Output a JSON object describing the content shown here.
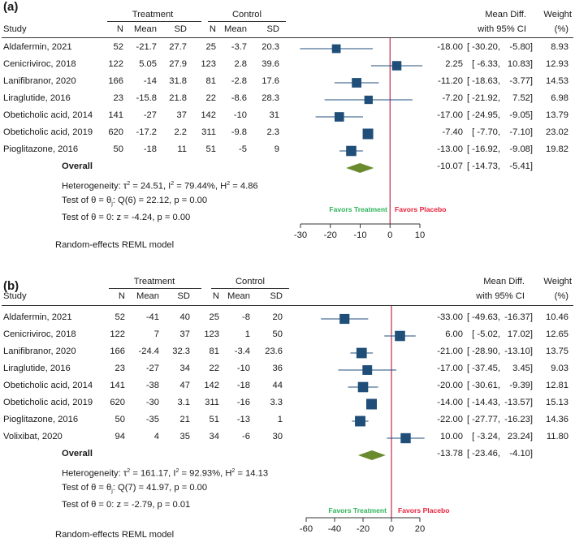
{
  "chart_data": [
    {
      "type": "forest",
      "panel_label": "(a)",
      "group_headers": {
        "treatment": "Treatment",
        "control": "Control"
      },
      "columns": [
        "Study",
        "N",
        "Mean",
        "SD",
        "N",
        "Mean",
        "SD"
      ],
      "effect_header_1": "Mean Diff.",
      "effect_header_2": "with 95% CI",
      "weight_header_1": "Weight",
      "weight_header_2": "(%)",
      "studies": [
        {
          "name": "Aldafermin, 2021",
          "t_n": "52",
          "t_mean": "-21.7",
          "t_sd": "27.7",
          "c_n": "25",
          "c_mean": "-3.7",
          "c_sd": "20.3",
          "md": -18.0,
          "lo": -30.2,
          "hi": -5.8,
          "md_text": "-18.00",
          "lo_text": "[ -30.20,",
          "hi_text": "-5.80]",
          "weight": "8.93"
        },
        {
          "name": "Cenicriviroc, 2018",
          "t_n": "122",
          "t_mean": "5.05",
          "t_sd": "27.9",
          "c_n": "123",
          "c_mean": "2.8",
          "c_sd": "39.6",
          "md": 2.25,
          "lo": -6.33,
          "hi": 10.83,
          "md_text": "2.25",
          "lo_text": "[ -6.33,",
          "hi_text": "10.83]",
          "weight": "12.93"
        },
        {
          "name": "Lanifibranor, 2020",
          "t_n": "166",
          "t_mean": "-14",
          "t_sd": "31.8",
          "c_n": "81",
          "c_mean": "-2.8",
          "c_sd": "17.6",
          "md": -11.2,
          "lo": -18.63,
          "hi": -3.77,
          "md_text": "-11.20",
          "lo_text": "[ -18.63,",
          "hi_text": "-3.77]",
          "weight": "14.53"
        },
        {
          "name": "Liraglutide, 2016",
          "t_n": "23",
          "t_mean": "-15.8",
          "t_sd": "21.8",
          "c_n": "22",
          "c_mean": "-8.6",
          "c_sd": "28.3",
          "md": -7.2,
          "lo": -21.92,
          "hi": 7.52,
          "md_text": "-7.20",
          "lo_text": "[ -21.92,",
          "hi_text": "7.52]",
          "weight": "6.98"
        },
        {
          "name": "Obeticholic acid, 2014",
          "t_n": "141",
          "t_mean": "-27",
          "t_sd": "37",
          "c_n": "142",
          "c_mean": "-10",
          "c_sd": "31",
          "md": -17.0,
          "lo": -24.95,
          "hi": -9.05,
          "md_text": "-17.00",
          "lo_text": "[ -24.95,",
          "hi_text": "-9.05]",
          "weight": "13.79"
        },
        {
          "name": "Obeticholic acid, 2019",
          "t_n": "620",
          "t_mean": "-17.2",
          "t_sd": "2.2",
          "c_n": "311",
          "c_mean": "-9.8",
          "c_sd": "2.3",
          "md": -7.4,
          "lo": -7.7,
          "hi": -7.1,
          "md_text": "-7.40",
          "lo_text": "[ -7.70,",
          "hi_text": "-7.10]",
          "weight": "23.02"
        },
        {
          "name": "Pioglitazone, 2016",
          "t_n": "50",
          "t_mean": "-18",
          "t_sd": "11",
          "c_n": "51",
          "c_mean": "-5",
          "c_sd": "9",
          "md": -13.0,
          "lo": -16.92,
          "hi": -9.08,
          "md_text": "-13.00",
          "lo_text": "[ -16.92,",
          "hi_text": "-9.08]",
          "weight": "19.82"
        }
      ],
      "overall": {
        "label": "Overall",
        "md": -10.07,
        "lo": -14.73,
        "hi": -5.41,
        "md_text": "-10.07",
        "lo_text": "[ -14.73,",
        "hi_text": "-5.41]"
      },
      "heterogeneity": {
        "prefix": "Heterogeneity: ",
        "tau_sym": "τ",
        "tau2": "= 24.51, ",
        "i_sym": "I",
        "i2": "= 79.44%, ",
        "h_sym": "H",
        "h2": "= 4.86"
      },
      "test_theta": "Test of θ = θ",
      "test_theta_sub": "j",
      "test_theta_rest": ": Q(6) = 22.12, p = 0.00",
      "test_zero": "Test of θ = 0: z = -4.24, p = 0.00",
      "favors_left": "Favors Treatment",
      "favors_right": "Favors Placebo",
      "xlim": [
        -30,
        10
      ],
      "xticks": [
        -30,
        -20,
        -10,
        0,
        10
      ],
      "xtick_labels": [
        "-30",
        "-20",
        "-10",
        "0",
        "10"
      ],
      "reference_line": 0,
      "model_note": "Random-effects REML model",
      "colors": {
        "square": "#1f4e79",
        "diamond": "#6a8a2e",
        "refline": "#c0284d",
        "favor_left": "#2fb35a",
        "favor_right": "#e8203a"
      }
    },
    {
      "type": "forest",
      "panel_label": "(b)",
      "group_headers": {
        "treatment": "Treatment",
        "control": "Control"
      },
      "columns": [
        "Study",
        "N",
        "Mean",
        "SD",
        "N",
        "Mean",
        "SD"
      ],
      "effect_header_1": "Mean Diff.",
      "effect_header_2": "with 95% CI",
      "weight_header_1": "Weight",
      "weight_header_2": "(%)",
      "studies": [
        {
          "name": "Aldafermin, 2021",
          "t_n": "52",
          "t_mean": "-41",
          "t_sd": "40",
          "c_n": "25",
          "c_mean": "-8",
          "c_sd": "20",
          "md": -33.0,
          "lo": -49.63,
          "hi": -16.37,
          "md_text": "-33.00",
          "lo_text": "[ -49.63,",
          "hi_text": "-16.37]",
          "weight": "10.46"
        },
        {
          "name": "Cenicriviroc, 2018",
          "t_n": "122",
          "t_mean": "7",
          "t_sd": "37",
          "c_n": "123",
          "c_mean": "1",
          "c_sd": "50",
          "md": 6.0,
          "lo": -5.02,
          "hi": 17.02,
          "md_text": "6.00",
          "lo_text": "[ -5.02,",
          "hi_text": "17.02]",
          "weight": "12.65"
        },
        {
          "name": "Lanifibranor, 2020",
          "t_n": "166",
          "t_mean": "-24.4",
          "t_sd": "32.3",
          "c_n": "81",
          "c_mean": "-3.4",
          "c_sd": "23.6",
          "md": -21.0,
          "lo": -28.9,
          "hi": -13.1,
          "md_text": "-21.00",
          "lo_text": "[ -28.90,",
          "hi_text": "-13.10]",
          "weight": "13.75"
        },
        {
          "name": "Liraglutide, 2016",
          "t_n": "23",
          "t_mean": "-27",
          "t_sd": "34",
          "c_n": "22",
          "c_mean": "-10",
          "c_sd": "36",
          "md": -17.0,
          "lo": -37.45,
          "hi": 3.45,
          "md_text": "-17.00",
          "lo_text": "[ -37.45,",
          "hi_text": "3.45]",
          "weight": "9.03"
        },
        {
          "name": "Obeticholic acid, 2014",
          "t_n": "141",
          "t_mean": "-38",
          "t_sd": "47",
          "c_n": "142",
          "c_mean": "-18",
          "c_sd": "44",
          "md": -20.0,
          "lo": -30.61,
          "hi": -9.39,
          "md_text": "-20.00",
          "lo_text": "[ -30.61,",
          "hi_text": "-9.39]",
          "weight": "12.81"
        },
        {
          "name": "Obeticholic acid, 2019",
          "t_n": "620",
          "t_mean": "-30",
          "t_sd": "3.1",
          "c_n": "311",
          "c_mean": "-16",
          "c_sd": "3.3",
          "md": -14.0,
          "lo": -14.43,
          "hi": -13.57,
          "md_text": "-14.00",
          "lo_text": "[ -14.43,",
          "hi_text": "-13.57]",
          "weight": "15.13"
        },
        {
          "name": "Pioglitazone, 2016",
          "t_n": "50",
          "t_mean": "-35",
          "t_sd": "21",
          "c_n": "51",
          "c_mean": "-13",
          "c_sd": "1",
          "md": -22.0,
          "lo": -27.77,
          "hi": -16.23,
          "md_text": "-22.00",
          "lo_text": "[ -27.77,",
          "hi_text": "-16.23]",
          "weight": "14.36"
        },
        {
          "name": "Volixibat, 2020",
          "t_n": "94",
          "t_mean": "4",
          "t_sd": "35",
          "c_n": "34",
          "c_mean": "-6",
          "c_sd": "30",
          "md": 10.0,
          "lo": -3.24,
          "hi": 23.24,
          "md_text": "10.00",
          "lo_text": "[ -3.24,",
          "hi_text": "23.24]",
          "weight": "11.80"
        }
      ],
      "overall": {
        "label": "Overall",
        "md": -13.78,
        "lo": -23.46,
        "hi": -4.1,
        "md_text": "-13.78",
        "lo_text": "[ -23.46,",
        "hi_text": "-4.10]"
      },
      "heterogeneity": {
        "prefix": "Heterogeneity: ",
        "tau_sym": "τ",
        "tau2": "= 161.17, ",
        "i_sym": "I",
        "i2": "= 92.93%, ",
        "h_sym": "H",
        "h2": "= 14.13"
      },
      "test_theta": "Test of θ = θ",
      "test_theta_sub": "j",
      "test_theta_rest": ": Q(7) = 41.97, p = 0.00",
      "test_zero": "Test of θ = 0: z = -2.79, p = 0.01",
      "favors_left": "Favors Treatment",
      "favors_right": "Favors Placebo",
      "xlim": [
        -60,
        20
      ],
      "xticks": [
        -60,
        -40,
        -20,
        0,
        20
      ],
      "xtick_labels": [
        "-60",
        "-40",
        "-20",
        "0",
        "20"
      ],
      "reference_line": 0,
      "model_note": "Random-effects REML model",
      "colors": {
        "square": "#1f4e79",
        "diamond": "#6a8a2e",
        "refline": "#c0284d",
        "favor_left": "#2fb35a",
        "favor_right": "#e8203a"
      }
    }
  ]
}
